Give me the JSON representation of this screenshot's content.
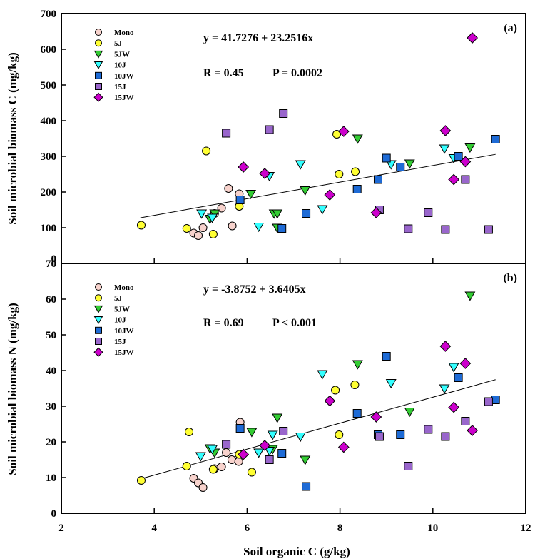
{
  "chart_data": [
    {
      "type": "scatter",
      "panel_label": "(a)",
      "xlabel": "Soil organic C (g/kg)",
      "ylabel": "Soil microbial biomass C  (mg/kg)",
      "xlim": [
        2,
        12
      ],
      "ylim": [
        0,
        700
      ],
      "yticks": [
        0,
        100,
        200,
        300,
        400,
        500,
        600,
        700
      ],
      "equation": "y = 41.7276 + 23.2516x",
      "stats_r": "R = 0.45",
      "stats_p": "P = 0.0002",
      "fit": {
        "intercept": 41.7276,
        "slope": 23.2516,
        "x_range": [
          3.7,
          11.35
        ]
      },
      "legend_position": "top-left",
      "series": [
        {
          "name": "Mono",
          "marker": "circle",
          "color": "#f7d2cc",
          "points": [
            [
              4.85,
              85
            ],
            [
              4.95,
              78
            ],
            [
              5.05,
              100
            ],
            [
              5.3,
              140
            ],
            [
              5.45,
              155
            ],
            [
              5.6,
              210
            ],
            [
              5.68,
              105
            ],
            [
              5.83,
              195
            ]
          ]
        },
        {
          "name": "5J",
          "marker": "circle",
          "color": "#ffff33",
          "points": [
            [
              3.72,
              107
            ],
            [
              4.7,
              98
            ],
            [
              5.12,
              315
            ],
            [
              5.27,
              82
            ],
            [
              5.83,
              160
            ],
            [
              7.93,
              362
            ],
            [
              7.98,
              250
            ],
            [
              8.33,
              257
            ]
          ]
        },
        {
          "name": "5JW",
          "marker": "triangle-down",
          "color": "#33cc33",
          "points": [
            [
              5.2,
              125
            ],
            [
              5.3,
              140
            ],
            [
              6.08,
              195
            ],
            [
              6.58,
              140
            ],
            [
              6.65,
              140
            ],
            [
              6.65,
              100
            ],
            [
              7.25,
              205
            ],
            [
              8.38,
              350
            ],
            [
              9.5,
              280
            ],
            [
              10.8,
              325
            ]
          ]
        },
        {
          "name": "10J",
          "marker": "triangle-down",
          "color": "#33ffff",
          "points": [
            [
              5.02,
              140
            ],
            [
              5.25,
              128
            ],
            [
              6.25,
              103
            ],
            [
              6.48,
              245
            ],
            [
              7.15,
              278
            ],
            [
              7.62,
              152
            ],
            [
              9.1,
              278
            ],
            [
              10.25,
              322
            ],
            [
              10.45,
              295
            ]
          ]
        },
        {
          "name": "10JW",
          "marker": "square",
          "color": "#1e6bd6",
          "points": [
            [
              5.85,
              178
            ],
            [
              6.75,
              98
            ],
            [
              7.27,
              140
            ],
            [
              8.37,
              208
            ],
            [
              8.82,
              235
            ],
            [
              9.0,
              295
            ],
            [
              9.3,
              270
            ],
            [
              10.55,
              300
            ],
            [
              11.35,
              348
            ]
          ]
        },
        {
          "name": "15J",
          "marker": "square",
          "color": "#9966cc",
          "points": [
            [
              5.55,
              365
            ],
            [
              6.48,
              375
            ],
            [
              6.78,
              420
            ],
            [
              8.85,
              150
            ],
            [
              9.47,
              97
            ],
            [
              9.9,
              142
            ],
            [
              10.27,
              95
            ],
            [
              10.7,
              235
            ],
            [
              11.2,
              95
            ]
          ]
        },
        {
          "name": "15JW",
          "marker": "diamond",
          "color": "#cc00cc",
          "points": [
            [
              5.92,
              270
            ],
            [
              6.38,
              252
            ],
            [
              7.78,
              192
            ],
            [
              8.08,
              370
            ],
            [
              8.78,
              142
            ],
            [
              10.27,
              372
            ],
            [
              10.45,
              235
            ],
            [
              10.7,
              285
            ],
            [
              10.85,
              632
            ]
          ]
        }
      ]
    },
    {
      "type": "scatter",
      "panel_label": "(b)",
      "xlabel": "Soil organic C (g/kg)",
      "ylabel": "Soil microbial biomass N (mg/kg)",
      "xlim": [
        2,
        12
      ],
      "ylim": [
        0,
        70
      ],
      "yticks": [
        0,
        10,
        20,
        30,
        40,
        50,
        60,
        70
      ],
      "xticks": [
        2,
        4,
        6,
        8,
        10,
        12
      ],
      "equation": "y = -3.8752 + 3.6405x",
      "stats_r": "R = 0.69",
      "stats_p": "P < 0.001",
      "fit": {
        "intercept": -3.8752,
        "slope": 3.6405,
        "x_range": [
          3.7,
          11.35
        ]
      },
      "legend_position": "top-left",
      "series": [
        {
          "name": "Mono",
          "marker": "circle",
          "color": "#f7d2cc",
          "points": [
            [
              4.85,
              9.8
            ],
            [
              4.95,
              8.5
            ],
            [
              5.05,
              7.2
            ],
            [
              5.3,
              12.5
            ],
            [
              5.45,
              13
            ],
            [
              5.55,
              17
            ],
            [
              5.67,
              15
            ],
            [
              5.82,
              14.5
            ],
            [
              5.85,
              25.5
            ]
          ]
        },
        {
          "name": "5J",
          "marker": "circle",
          "color": "#ffff33",
          "points": [
            [
              3.72,
              9.2
            ],
            [
              4.7,
              13.2
            ],
            [
              4.75,
              22.8
            ],
            [
              5.27,
              12.3
            ],
            [
              5.83,
              16.5
            ],
            [
              6.1,
              11.5
            ],
            [
              7.9,
              34.5
            ],
            [
              7.98,
              22
            ],
            [
              8.32,
              36
            ]
          ]
        },
        {
          "name": "5JW",
          "marker": "triangle-down",
          "color": "#33cc33",
          "points": [
            [
              5.2,
              18.2
            ],
            [
              5.3,
              17
            ],
            [
              6.1,
              22.8
            ],
            [
              6.55,
              18
            ],
            [
              6.65,
              26.8
            ],
            [
              7.25,
              15
            ],
            [
              8.38,
              41.8
            ],
            [
              9.5,
              28.5
            ],
            [
              10.8,
              61
            ]
          ]
        },
        {
          "name": "10J",
          "marker": "triangle-down",
          "color": "#33ffff",
          "points": [
            [
              5.0,
              16
            ],
            [
              5.25,
              18
            ],
            [
              6.25,
              17
            ],
            [
              6.48,
              17.5
            ],
            [
              6.55,
              22
            ],
            [
              7.15,
              21.5
            ],
            [
              7.62,
              39
            ],
            [
              9.1,
              36.5
            ],
            [
              10.25,
              35
            ],
            [
              10.45,
              41
            ]
          ]
        },
        {
          "name": "10JW",
          "marker": "square",
          "color": "#1e6bd6",
          "points": [
            [
              5.85,
              23.8
            ],
            [
              6.75,
              16.8
            ],
            [
              7.27,
              7.5
            ],
            [
              8.37,
              28
            ],
            [
              8.82,
              22
            ],
            [
              9.0,
              44
            ],
            [
              9.3,
              22
            ],
            [
              10.55,
              38
            ],
            [
              11.35,
              31.8
            ]
          ]
        },
        {
          "name": "15J",
          "marker": "square",
          "color": "#9966cc",
          "points": [
            [
              5.55,
              19.3
            ],
            [
              6.48,
              15
            ],
            [
              6.78,
              23
            ],
            [
              8.85,
              21.5
            ],
            [
              9.47,
              13.2
            ],
            [
              9.9,
              23.5
            ],
            [
              10.27,
              21.5
            ],
            [
              10.7,
              25.8
            ],
            [
              11.2,
              31.3
            ]
          ]
        },
        {
          "name": "15JW",
          "marker": "diamond",
          "color": "#cc00cc",
          "points": [
            [
              5.92,
              16.5
            ],
            [
              6.38,
              19
            ],
            [
              7.78,
              31.5
            ],
            [
              8.08,
              18.5
            ],
            [
              8.78,
              27
            ],
            [
              10.27,
              46.8
            ],
            [
              10.45,
              29.7
            ],
            [
              10.7,
              42
            ],
            [
              10.85,
              23.2
            ]
          ]
        }
      ]
    }
  ]
}
